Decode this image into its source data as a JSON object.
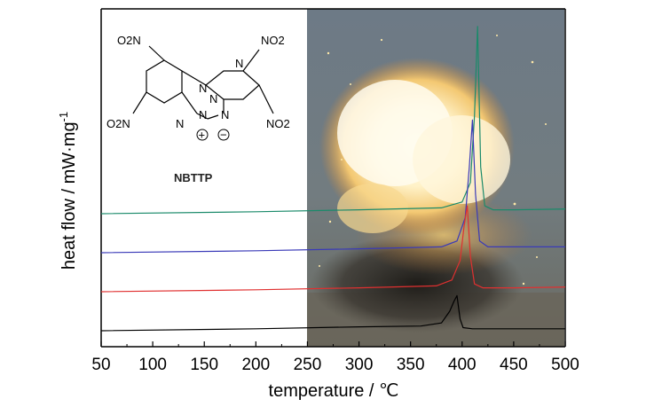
{
  "chart_data": {
    "type": "line",
    "xlabel": "temperature / ℃",
    "ylabel": "heat flow / mW·mg",
    "ylabel_superscript": "-1",
    "xlim": [
      50,
      500
    ],
    "x_ticks": [
      "50",
      "100",
      "150",
      "200",
      "250",
      "300",
      "350",
      "400",
      "450",
      "500"
    ],
    "grid": false,
    "legend": "none",
    "note": "Y axis is unitless/offset (no tick labels); curves are vertically stacked DSC traces.",
    "series": [
      {
        "color": "#1a8a6a",
        "baseline_offset": 3,
        "x": [
          50,
          200,
          300,
          380,
          400,
          408,
          412,
          415,
          418,
          422,
          430,
          450,
          500
        ],
        "y": [
          0.0,
          0.05,
          0.1,
          0.15,
          0.3,
          0.8,
          2.5,
          4.8,
          1.2,
          0.2,
          0.1,
          0.1,
          0.12
        ]
      },
      {
        "color": "#3a3ab8",
        "baseline_offset": 2,
        "x": [
          50,
          200,
          300,
          380,
          395,
          403,
          407,
          410,
          413,
          417,
          425,
          450,
          500
        ],
        "y": [
          0.0,
          0.05,
          0.1,
          0.15,
          0.3,
          0.9,
          2.2,
          3.4,
          1.5,
          0.3,
          0.15,
          0.15,
          0.15
        ]
      },
      {
        "color": "#e03030",
        "baseline_offset": 1,
        "x": [
          50,
          200,
          300,
          375,
          390,
          398,
          402,
          405,
          408,
          412,
          420,
          450,
          500
        ],
        "y": [
          0.0,
          0.05,
          0.1,
          0.15,
          0.3,
          0.8,
          1.7,
          2.2,
          0.9,
          0.2,
          0.1,
          0.1,
          0.12
        ]
      },
      {
        "color": "#000000",
        "baseline_offset": 0,
        "x": [
          50,
          200,
          300,
          360,
          380,
          388,
          392,
          395,
          398,
          401,
          410,
          450,
          500
        ],
        "y": [
          0.0,
          0.05,
          0.1,
          0.12,
          0.2,
          0.5,
          0.75,
          0.9,
          0.3,
          0.08,
          0.05,
          0.05,
          0.05
        ]
      }
    ],
    "inset": {
      "compound_label": "NBTTP",
      "substituents": [
        "O2N",
        "NO2",
        "O2N",
        "NO2"
      ],
      "ring_atoms": [
        "N",
        "N",
        "N",
        "N",
        "N",
        "N"
      ],
      "charges": [
        "+",
        "−"
      ]
    },
    "photo_inset": "explosion-photo"
  }
}
